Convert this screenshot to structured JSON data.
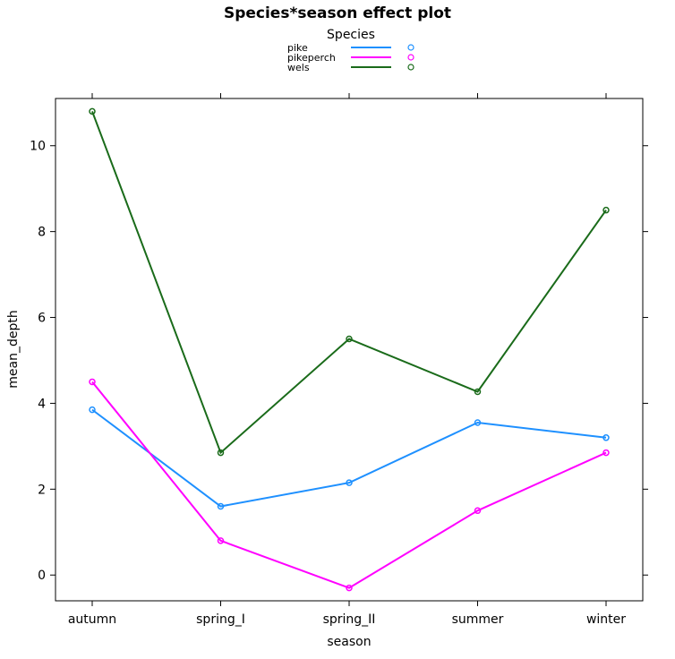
{
  "chart_data": {
    "type": "line",
    "title": "Species*season effect plot",
    "xlabel": "season",
    "ylabel": "mean_depth",
    "categories": [
      "autumn",
      "spring_I",
      "spring_II",
      "summer",
      "winter"
    ],
    "ylim": [
      -0.6,
      11.1
    ],
    "yticks": [
      0,
      2,
      4,
      6,
      8,
      10
    ],
    "legend": {
      "title": "Species",
      "placement": "top-center"
    },
    "grid": false,
    "series": [
      {
        "name": "pike",
        "color": "#1E90FF",
        "values": [
          3.85,
          1.6,
          2.15,
          3.55,
          3.2
        ]
      },
      {
        "name": "pikeperch",
        "color": "#FF00FF",
        "values": [
          4.5,
          0.8,
          -0.3,
          1.5,
          2.85
        ]
      },
      {
        "name": "wels",
        "color": "#1A6B1A",
        "values": [
          10.8,
          2.85,
          5.5,
          4.27,
          8.5
        ]
      }
    ]
  }
}
